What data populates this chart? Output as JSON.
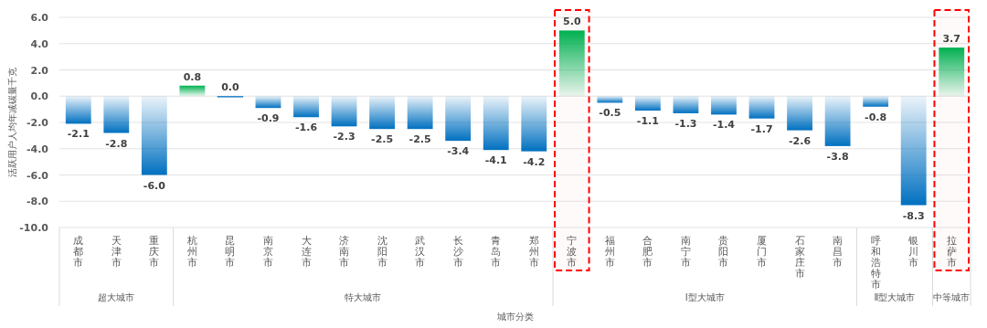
{
  "chart_data": {
    "type": "bar",
    "ylabel": "活跃用户人均年减碳量千克",
    "xlabel": "城市分类",
    "categories": [
      "成都市",
      "天津市",
      "重庆市",
      "杭州市",
      "昆明市",
      "南京市",
      "大连市",
      "济南市",
      "沈阳市",
      "武汉市",
      "长沙市",
      "青岛市",
      "郑州市",
      "宁波市",
      "福州市",
      "合肥市",
      "南宁市",
      "贵阳市",
      "厦门市",
      "石家庄市",
      "南昌市",
      "呼和浩特市",
      "银川市",
      "拉萨市"
    ],
    "values": [
      -2.1,
      -2.8,
      -6.0,
      0.8,
      0.0,
      -0.9,
      -1.6,
      -2.3,
      -2.5,
      -2.5,
      -3.4,
      -4.1,
      -4.2,
      5.0,
      -0.5,
      -1.1,
      -1.3,
      -1.4,
      -1.7,
      -2.6,
      -3.8,
      -0.8,
      -8.3,
      3.7
    ],
    "value_labels": [
      "-2.1",
      "-2.8",
      "-6.0",
      "0.8",
      "0.0",
      "-0.9",
      "-1.6",
      "-2.3",
      "-2.5",
      "-2.5",
      "-3.4",
      "-4.1",
      "-4.2",
      "5.0",
      "-0.5",
      "-1.1",
      "-1.3",
      "-1.4",
      "-1.7",
      "-2.6",
      "-3.8",
      "-0.8",
      "-8.3",
      "3.7"
    ],
    "colors": [
      "#0070c0",
      "#0070c0",
      "#0070c0",
      "#00b050",
      "#0070c0",
      "#0070c0",
      "#0070c0",
      "#0070c0",
      "#0070c0",
      "#0070c0",
      "#0070c0",
      "#0070c0",
      "#0070c0",
      "#00b050",
      "#0070c0",
      "#0070c0",
      "#0070c0",
      "#0070c0",
      "#0070c0",
      "#0070c0",
      "#0070c0",
      "#0070c0",
      "#0070c0",
      "#00b050"
    ],
    "ylim": [
      -10,
      6
    ],
    "yticks": [
      {
        "value": -10,
        "label": "-10.0"
      },
      {
        "value": -8,
        "label": "-8.0"
      },
      {
        "value": -6,
        "label": "-6.0"
      },
      {
        "value": -4,
        "label": "-4.0"
      },
      {
        "value": -2,
        "label": "-2.0"
      },
      {
        "value": 0,
        "label": "0.0"
      },
      {
        "value": 2,
        "label": "2.0"
      },
      {
        "value": 4,
        "label": "4.0"
      },
      {
        "value": 6,
        "label": "6.0"
      }
    ],
    "grid": "y",
    "bands": [
      {
        "axis": "x",
        "from": "宁波市",
        "to": "宁波市",
        "color": "#ff0000"
      },
      {
        "axis": "x",
        "from": "拉萨市",
        "to": "拉萨市",
        "color": "#ff0000"
      }
    ],
    "annotations": [
      "超大城市",
      "特大城市",
      "Ⅰ型大城市",
      "Ⅱ型大城市",
      "中等城市"
    ]
  }
}
